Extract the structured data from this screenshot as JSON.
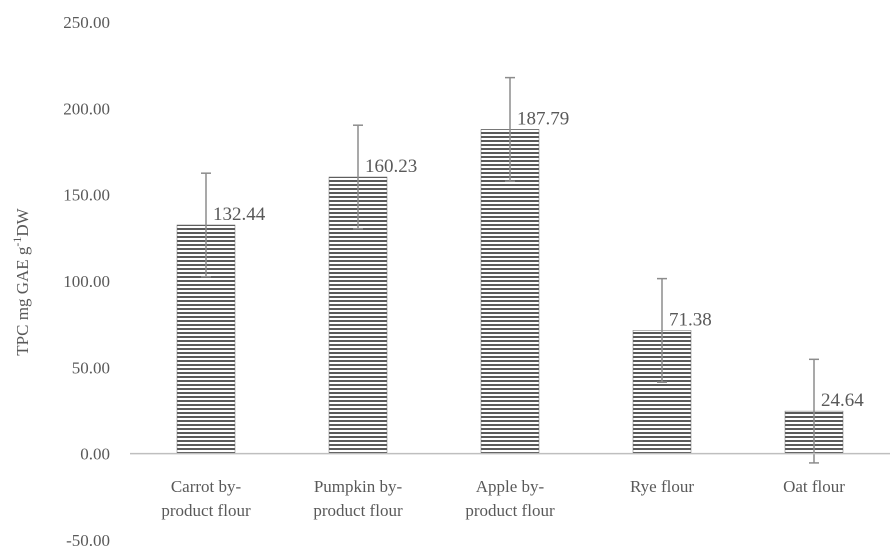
{
  "chart_data": {
    "type": "bar",
    "categories": [
      [
        "Carrot by-",
        "product flour"
      ],
      [
        "Pumpkin by-",
        "product flour"
      ],
      [
        "Apple by-",
        "product flour"
      ],
      [
        "Rye flour"
      ],
      [
        "Oat flour"
      ]
    ],
    "values": [
      132.44,
      160.23,
      187.79,
      71.38,
      24.64
    ],
    "error": [
      30,
      30,
      30,
      30,
      30
    ],
    "data_labels": [
      "132.44",
      "160.23",
      "187.79",
      "71.38",
      "24.64"
    ],
    "ylabel": "TPC mg GAE g-1DW",
    "ylabel_parts": {
      "before": "TPC mg GAE g",
      "sup": "-1",
      "after": "DW"
    },
    "ylim": [
      -50,
      250
    ],
    "yticks": [
      250,
      200,
      150,
      100,
      50,
      0,
      -50
    ],
    "ytick_labels": [
      "250.00",
      "200.00",
      "150.00",
      "100.00",
      "50.00",
      "0.00",
      "-50.00"
    ],
    "grid": false,
    "legend": "none",
    "bar_fill": "horizontal-stripes",
    "colors": {
      "stripe_dark": "#5a5a5a",
      "stripe_light": "#ffffff",
      "axis": "#bfbfbf",
      "error_bar": "#8c8c8c",
      "text": "#595959"
    }
  }
}
